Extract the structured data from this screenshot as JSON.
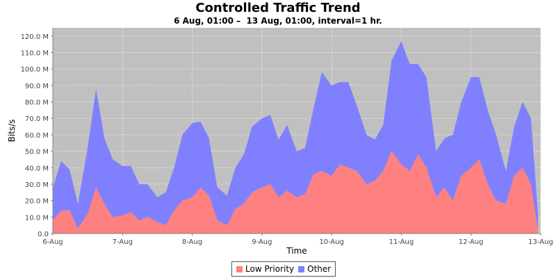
{
  "chart_data": {
    "type": "area",
    "stacked": true,
    "title": "Controlled Traffic Trend",
    "subtitle": "6 Aug, 01:00 –  13 Aug, 01:00, interval=1 hr.",
    "xlabel": "Time",
    "ylabel": "Bits/s",
    "ylim": [
      0,
      125
    ],
    "y_unit": "M",
    "y_ticks": [
      "0.0",
      "10.0 M",
      "20.0 M",
      "30.0 M",
      "40.0 M",
      "50.0 M",
      "60.0 M",
      "70.0 M",
      "80.0 M",
      "90.0 M",
      "100.0 M",
      "110.0 M",
      "120.0 M"
    ],
    "y_tick_values": [
      0,
      10,
      20,
      30,
      40,
      50,
      60,
      70,
      80,
      90,
      100,
      110,
      120
    ],
    "x_ticks": [
      "6-Aug",
      "7-Aug",
      "8-Aug",
      "9-Aug",
      "10-Aug",
      "11-Aug",
      "12-Aug",
      "13-Aug"
    ],
    "x_tick_days": [
      0,
      1,
      2,
      3,
      4,
      5,
      6,
      7
    ],
    "x_days": [
      0,
      0.12,
      0.24,
      0.36,
      0.5,
      0.62,
      0.74,
      0.86,
      1.0,
      1.12,
      1.24,
      1.36,
      1.5,
      1.62,
      1.74,
      1.86,
      2.0,
      2.12,
      2.24,
      2.36,
      2.5,
      2.62,
      2.74,
      2.86,
      3.0,
      3.12,
      3.24,
      3.36,
      3.5,
      3.62,
      3.74,
      3.86,
      4.0,
      4.12,
      4.24,
      4.36,
      4.5,
      4.62,
      4.74,
      4.86,
      5.0,
      5.12,
      5.24,
      5.36,
      5.5,
      5.62,
      5.74,
      5.86,
      6.0,
      6.12,
      6.24,
      6.36,
      6.5,
      6.62,
      6.74,
      6.86,
      6.96
    ],
    "grid": true,
    "legend_position": "bottom",
    "series": [
      {
        "name": "Low Priority",
        "color": "#ff8080",
        "values": [
          8,
          14,
          14,
          3,
          12,
          28,
          18,
          10,
          11,
          13,
          8,
          10,
          7,
          5,
          14,
          20,
          22,
          28,
          23,
          8,
          5,
          15,
          18,
          25,
          28,
          30,
          22,
          26,
          22,
          24,
          36,
          38,
          35,
          42,
          40,
          38,
          30,
          32,
          38,
          50,
          42,
          38,
          48,
          40,
          22,
          28,
          20,
          35,
          40,
          45,
          30,
          20,
          18,
          35,
          40,
          30,
          2
        ]
      },
      {
        "name": "Other",
        "color": "#8080ff",
        "values": [
          20,
          30,
          25,
          15,
          40,
          60,
          40,
          35,
          30,
          28,
          22,
          20,
          15,
          20,
          26,
          40,
          45,
          40,
          35,
          20,
          18,
          25,
          30,
          40,
          42,
          42,
          35,
          40,
          28,
          28,
          40,
          60,
          55,
          50,
          52,
          40,
          30,
          25,
          28,
          55,
          75,
          65,
          55,
          55,
          28,
          30,
          40,
          45,
          55,
          50,
          45,
          40,
          20,
          30,
          40,
          40,
          10
        ]
      }
    ]
  },
  "legend": {
    "items": [
      "Low Priority",
      "Other"
    ]
  }
}
